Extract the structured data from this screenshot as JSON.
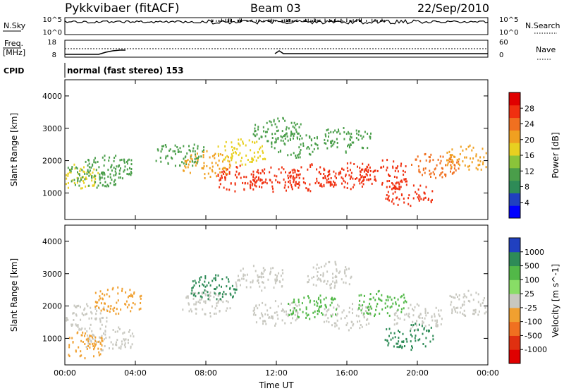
{
  "header": {
    "site": "Pykkvibaer (fitACF)",
    "beam": "Beam 03",
    "date": "22/Sep/2010"
  },
  "noise_panel": {
    "left_label": "N.Sky",
    "left_ticks": [
      "10^5",
      "10^0"
    ],
    "right_ticks": [
      "10^5",
      "10^0"
    ],
    "right_label": "N.Search"
  },
  "freq_panel": {
    "left_label_1": "Freq.",
    "left_label_2": "[MHz]",
    "left_ticks": [
      "18",
      "8"
    ],
    "right_ticks": [
      "60",
      "0"
    ],
    "right_label": "Nave"
  },
  "cpid": {
    "label": "CPID",
    "value": "normal (fast stereo) 153"
  },
  "colors": {
    "power_scale": [
      "#0000ff",
      "#2040c0",
      "#2e8b57",
      "#4a9e4a",
      "#8ac43a",
      "#e8d020",
      "#f0a020",
      "#f07020",
      "#f03010",
      "#e00000"
    ],
    "velocity_scale": [
      "#2040c0",
      "#2e8b57",
      "#52b848",
      "#88dd66",
      "#c8c8c0",
      "#f0a030",
      "#f07020",
      "#e03010",
      "#e00000"
    ],
    "ground_scatter": "#c8c8c0"
  },
  "chart_data": [
    {
      "type": "heatmap",
      "title": "",
      "xlabel": "",
      "ylabel": "Slant Range [km]",
      "x_ticks": [
        "00:00",
        "04:00",
        "08:00",
        "12:00",
        "16:00",
        "20:00",
        "00:00"
      ],
      "xlim": [
        0,
        24
      ],
      "y_ticks": [
        "1000",
        "2000",
        "3000",
        "4000"
      ],
      "y_tick_values": [
        1000,
        2000,
        3000,
        4000
      ],
      "ylim": [
        180,
        4500
      ],
      "colorbar_label": "Power [dB]",
      "colorbar_ticks": [
        "4",
        "8",
        "12",
        "16",
        "20",
        "24",
        "28"
      ],
      "colorbar_values": [
        4,
        8,
        12,
        16,
        20,
        24,
        28
      ],
      "colorbar_range": [
        0,
        32
      ],
      "features": [
        {
          "t": 0.5,
          "r": 1500,
          "v": 16
        },
        {
          "t": 1.5,
          "r": 1550,
          "v": 12
        },
        {
          "t": 2.5,
          "r": 1800,
          "v": 10
        },
        {
          "t": 6.5,
          "r": 2200,
          "v": 10
        },
        {
          "t": 8.0,
          "r": 1900,
          "v": 20
        },
        {
          "t": 10.0,
          "r": 1450,
          "v": 26
        },
        {
          "t": 12.0,
          "r": 1450,
          "v": 27
        },
        {
          "t": 14.0,
          "r": 1500,
          "v": 27
        },
        {
          "t": 16.0,
          "r": 1550,
          "v": 27
        },
        {
          "t": 18.0,
          "r": 1650,
          "v": 26
        },
        {
          "t": 19.5,
          "r": 1000,
          "v": 28
        },
        {
          "t": 21.0,
          "r": 1900,
          "v": 24
        },
        {
          "t": 23.0,
          "r": 2100,
          "v": 20
        },
        {
          "t": 10.0,
          "r": 2300,
          "v": 16
        },
        {
          "t": 13.0,
          "r": 2500,
          "v": 12
        },
        {
          "t": 16.0,
          "r": 2700,
          "v": 12
        },
        {
          "t": 12.0,
          "r": 3000,
          "v": 10
        }
      ]
    },
    {
      "type": "heatmap",
      "title": "",
      "xlabel": "Time UT",
      "ylabel": "Slant Range [km]",
      "x_ticks": [
        "00:00",
        "04:00",
        "08:00",
        "12:00",
        "16:00",
        "20:00",
        "00:00"
      ],
      "xlim": [
        0,
        24
      ],
      "y_ticks": [
        "1000",
        "2000",
        "3000",
        "4000"
      ],
      "y_tick_values": [
        1000,
        2000,
        3000,
        4000
      ],
      "ylim": [
        180,
        4500
      ],
      "colorbar_label": "Velocity [m s^-1]",
      "colorbar_ticks": [
        "1000",
        "500",
        "100",
        "25",
        "-25",
        "-100",
        "-500",
        "-1000"
      ],
      "features": [
        {
          "t": 1.0,
          "r": 1700,
          "v": "ground"
        },
        {
          "t": 2.5,
          "r": 1000,
          "v": "ground"
        },
        {
          "t": 0.8,
          "r": 800,
          "v": "-100"
        },
        {
          "t": 3.0,
          "r": 2200,
          "v": "-100"
        },
        {
          "t": 8.0,
          "r": 2100,
          "v": "ground"
        },
        {
          "t": 12.0,
          "r": 1800,
          "v": "ground"
        },
        {
          "t": 16.0,
          "r": 1700,
          "v": "ground"
        },
        {
          "t": 20.0,
          "r": 1700,
          "v": "ground"
        },
        {
          "t": 23.0,
          "r": 2100,
          "v": "ground"
        },
        {
          "t": 14.0,
          "r": 2000,
          "v": "100"
        },
        {
          "t": 18.0,
          "r": 2100,
          "v": "100"
        },
        {
          "t": 19.5,
          "r": 1100,
          "v": "500"
        },
        {
          "t": 8.5,
          "r": 2600,
          "v": "500"
        },
        {
          "t": 11.0,
          "r": 2900,
          "v": "ground"
        },
        {
          "t": 15.0,
          "r": 3000,
          "v": "ground"
        }
      ]
    }
  ]
}
